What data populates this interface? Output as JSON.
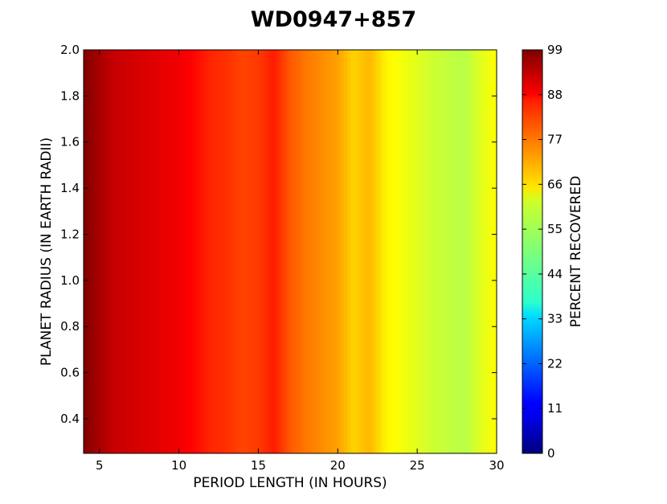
{
  "chart_data": {
    "type": "heatmap",
    "title": "WD0947+857",
    "xlabel": "PERIOD LENGTH (IN HOURS)",
    "ylabel": "PLANET RADIUS (IN EARTH RADII)",
    "xlim": [
      4,
      30
    ],
    "ylim": [
      0.25,
      2.0
    ],
    "xticks": [
      5,
      10,
      15,
      20,
      25,
      30
    ],
    "yticks": [
      0.4,
      0.6,
      0.8,
      1.0,
      1.2,
      1.4,
      1.6,
      1.8,
      2.0
    ],
    "colorbar": {
      "label": "PERCENT RECOVERED",
      "range": [
        0,
        99
      ],
      "ticks": [
        0,
        11,
        22,
        33,
        44,
        55,
        66,
        77,
        88,
        99
      ],
      "colormap": "jet"
    },
    "profile_period_hours": [
      4,
      5,
      6,
      7,
      8,
      9,
      10,
      11,
      12,
      13,
      14,
      15,
      16,
      17,
      18,
      19,
      20,
      21,
      22,
      23,
      24,
      25,
      26,
      27,
      28,
      29,
      30
    ],
    "profile_percent_recovered": [
      99,
      95,
      92,
      91,
      90,
      89,
      88,
      86,
      83,
      82,
      80,
      81,
      84,
      78,
      75,
      73,
      71,
      66,
      69,
      63,
      61,
      59,
      57,
      56,
      55,
      59,
      62
    ]
  }
}
